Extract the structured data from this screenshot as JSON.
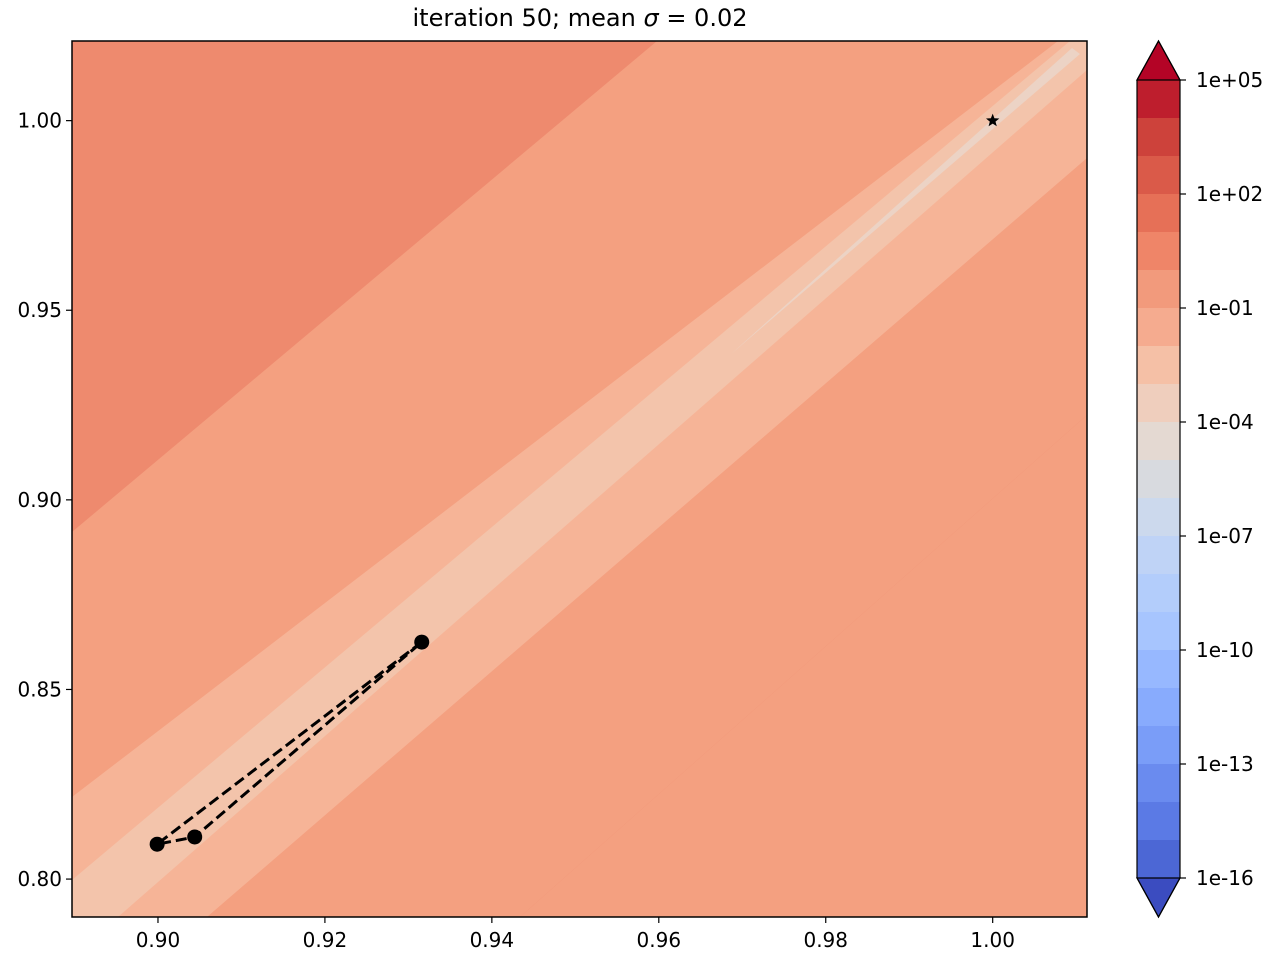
{
  "chart_data": {
    "type": "contour",
    "title": "iteration 50; mean σ = 0.02",
    "title_parts": {
      "prefix": "iteration 50; mean ",
      "symbol": "σ",
      "suffix": " = 0.02"
    },
    "xlim": [
      0.8897,
      1.0113
    ],
    "ylim": [
      0.79,
      1.021
    ],
    "x_ticks": [
      0.9,
      0.92,
      0.94,
      0.96,
      0.98,
      1.0
    ],
    "x_tick_labels": [
      "0.90",
      "0.92",
      "0.94",
      "0.96",
      "0.98",
      "1.00"
    ],
    "y_ticks": [
      0.8,
      0.85,
      0.9,
      0.95,
      1.0
    ],
    "y_tick_labels": [
      "0.80",
      "0.85",
      "0.90",
      "0.95",
      "1.00"
    ],
    "grid": false,
    "colormap": "coolwarm",
    "contour_bands": [
      {
        "level": "outer",
        "color": "#ee8a6e"
      },
      {
        "level": "mid",
        "color": "#f4a080"
      },
      {
        "level": "inner",
        "color": "#f6b497"
      },
      {
        "level": "core",
        "color": "#f3c4ab"
      },
      {
        "level": "valley",
        "color": "#ecd3c5"
      }
    ],
    "trajectory": {
      "style": "dashed",
      "color": "#000000",
      "points": [
        {
          "x": 0.9316,
          "y": 0.8625
        },
        {
          "x": 0.8999,
          "y": 0.8092
        },
        {
          "x": 0.9044,
          "y": 0.8111
        },
        {
          "x": 0.9316,
          "y": 0.8625
        }
      ],
      "markers": [
        {
          "x": 0.9316,
          "y": 0.8625
        },
        {
          "x": 0.8999,
          "y": 0.8092
        },
        {
          "x": 0.9044,
          "y": 0.8111
        }
      ]
    },
    "optimum": {
      "x": 1.0,
      "y": 1.0,
      "marker": "star"
    },
    "colorbar": {
      "scale": "log",
      "extend": "both",
      "tick_labels": [
        "1e+05",
        "1e+02",
        "1e-01",
        "1e-04",
        "1e-07",
        "1e-10",
        "1e-13",
        "1e-16"
      ],
      "tick_exponents": [
        5,
        2,
        -1,
        -4,
        -7,
        -10,
        -13,
        -16
      ],
      "range_exponents": [
        -16,
        5
      ],
      "colors_top_to_bottom": [
        "#be1e2d",
        "#cd423b",
        "#da5a49",
        "#e67057",
        "#ef8568",
        "#f29a7c",
        "#f5ab8f",
        "#f5c0a6",
        "#efcebd",
        "#e4d9d2",
        "#d8dadf",
        "#ccd9ed",
        "#bfd3f6",
        "#b3cdfb",
        "#a7c5fe",
        "#97b8ff",
        "#88abfd",
        "#7a9df8",
        "#6a8bef",
        "#5b7ae5",
        "#4c67d5"
      ],
      "extend_max_color": "#b40426",
      "extend_min_color": "#3b4cc0"
    }
  }
}
